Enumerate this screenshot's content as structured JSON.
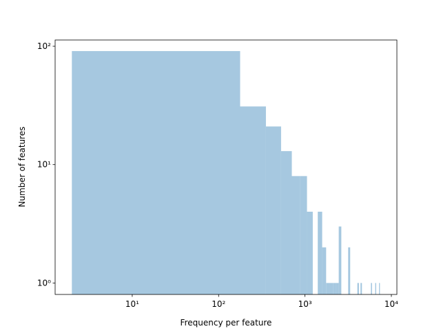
{
  "chart_data": {
    "type": "histogram",
    "xlabel": "Frequency per feature",
    "ylabel": "Number of features",
    "bins": [
      2,
      177.5,
      353,
      528.5,
      704,
      879.5,
      1055,
      1230.5,
      1406,
      1581.5,
      1757,
      1932.5,
      2108,
      2283.5,
      2459,
      2634.5,
      2810,
      2985.5,
      3161,
      3336.5,
      3512,
      3687.5,
      3863,
      4038.5,
      4214,
      4389.5,
      4565,
      4740.5,
      4916,
      5091.5,
      5267,
      5442.5,
      5618,
      5793.5,
      5969,
      6144.5,
      6320,
      6495.5,
      6671,
      6846.5,
      7022,
      7197.5,
      7373
    ],
    "counts": [
      91,
      31,
      21,
      13,
      8,
      8,
      4,
      0,
      4,
      2,
      1,
      1,
      1,
      1,
      3,
      0,
      0,
      0,
      2,
      0,
      0,
      0,
      0,
      1,
      0,
      1,
      0,
      0,
      0,
      0,
      0,
      0,
      0,
      1,
      0,
      0,
      0,
      1,
      0,
      0,
      0,
      1
    ],
    "color": "#a6c8e0",
    "xscale": "log",
    "yscale": "log",
    "xlim": [
      1.28,
      11590
    ],
    "ylim": [
      0.8,
      112.9
    ],
    "xticks": [
      {
        "value": 10,
        "label": "10¹"
      },
      {
        "value": 100,
        "label": "10²"
      },
      {
        "value": 1000,
        "label": "10³"
      },
      {
        "value": 10000,
        "label": "10⁴"
      }
    ],
    "yticks": [
      {
        "value": 1,
        "label": "10⁰"
      },
      {
        "value": 10,
        "label": "10¹"
      },
      {
        "value": 100,
        "label": "10²"
      }
    ]
  }
}
